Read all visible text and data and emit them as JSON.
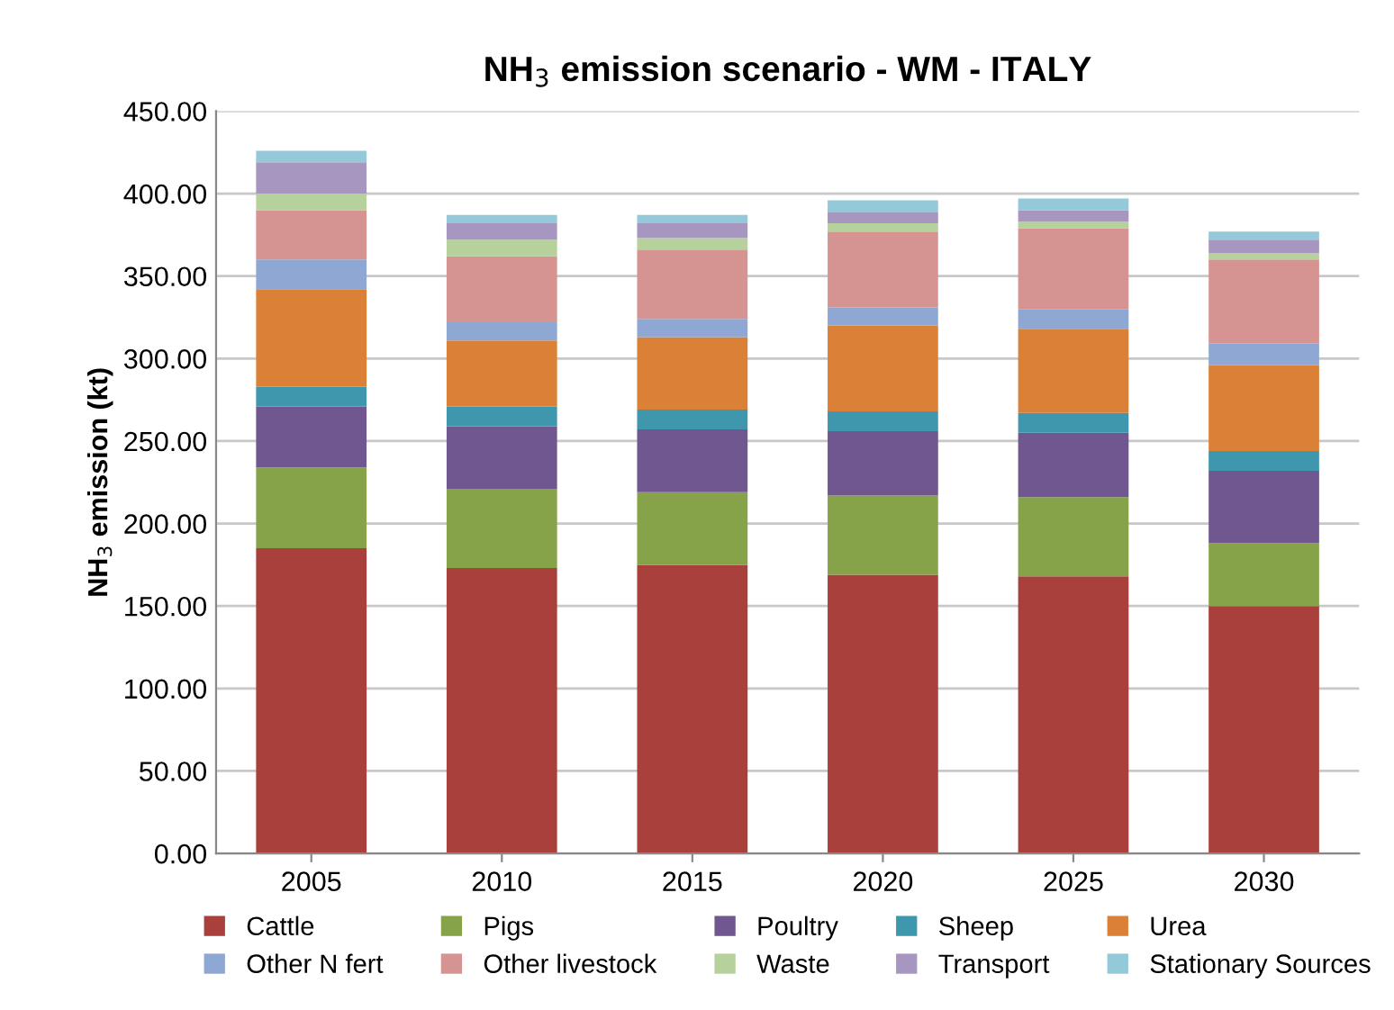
{
  "chart_data": {
    "type": "bar",
    "stacked": true,
    "title": "NH$_{3}$ emission scenario - WM - ITALY",
    "ylabel": "NH$_{3}$ emission (kt)",
    "categories": [
      "2005",
      "2010",
      "2015",
      "2020",
      "2025",
      "2030"
    ],
    "series": [
      {
        "name": "Cattle",
        "color": "#a9403b",
        "values": [
          185,
          173,
          175,
          169,
          168,
          150
        ]
      },
      {
        "name": "Pigs",
        "color": "#86a34a",
        "values": [
          49,
          48,
          44,
          48,
          48,
          38
        ]
      },
      {
        "name": "Poultry",
        "color": "#71578f",
        "values": [
          37,
          38,
          38,
          39,
          39,
          44
        ]
      },
      {
        "name": "Sheep",
        "color": "#3e97ad",
        "values": [
          12,
          12,
          12,
          12,
          12,
          12
        ]
      },
      {
        "name": "Urea",
        "color": "#da8137",
        "values": [
          59,
          40,
          44,
          52,
          51,
          52
        ]
      },
      {
        "name": "Other N fert",
        "color": "#8ea8d3",
        "values": [
          18,
          11,
          11,
          11,
          12,
          13
        ]
      },
      {
        "name": "Other livestock",
        "color": "#d59492",
        "values": [
          30,
          40,
          42,
          46,
          49,
          51
        ]
      },
      {
        "name": "Waste",
        "color": "#b6d19c",
        "values": [
          10,
          10,
          7,
          5,
          4,
          4
        ]
      },
      {
        "name": "Transport",
        "color": "#a797c0",
        "values": [
          19,
          10,
          9,
          7,
          7,
          8
        ]
      },
      {
        "name": "Stationary Sources",
        "color": "#94c9da",
        "values": [
          7,
          5,
          5,
          7,
          7,
          5
        ]
      }
    ],
    "ylim": [
      0,
      450
    ],
    "yticks": [
      {
        "value": 0,
        "label": "0.00"
      },
      {
        "value": 50,
        "label": "50.00"
      },
      {
        "value": 100,
        "label": "100.00"
      },
      {
        "value": 150,
        "label": "150.00"
      },
      {
        "value": 200,
        "label": "200.00"
      },
      {
        "value": 250,
        "label": "250.00"
      },
      {
        "value": 300,
        "label": "300.00"
      },
      {
        "value": 350,
        "label": "350.00"
      },
      {
        "value": 400,
        "label": "400.00"
      },
      {
        "value": 450,
        "label": "450.00"
      }
    ],
    "grid": "y",
    "legend": "bottom"
  }
}
